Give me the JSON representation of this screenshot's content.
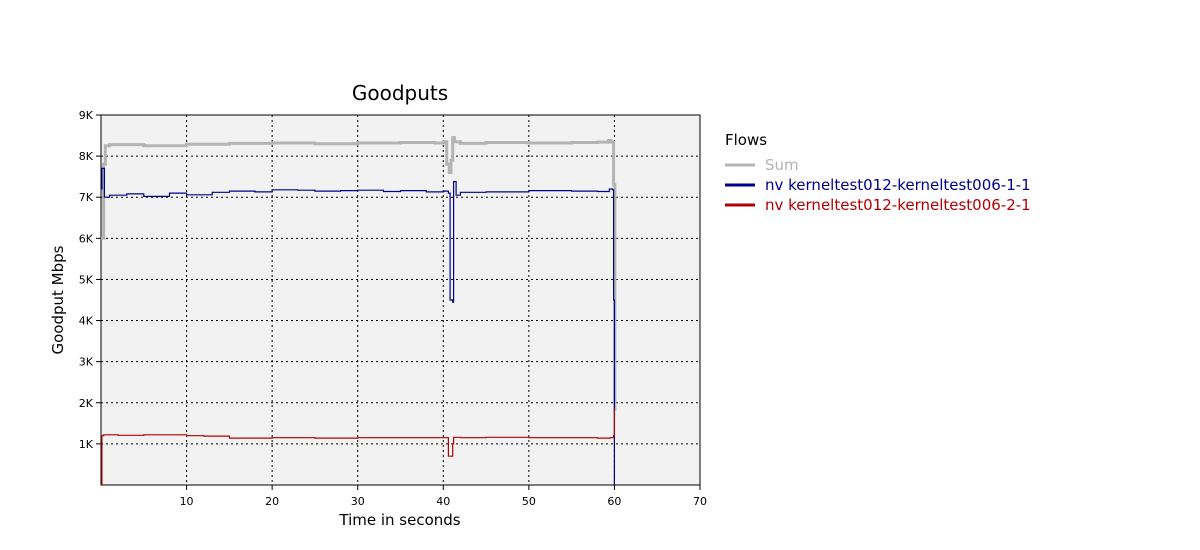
{
  "chart_data": {
    "type": "line",
    "title": "Goodputs",
    "xlabel": "Time in seconds",
    "ylabel": "Goodput Mbps",
    "xlim": [
      0,
      70
    ],
    "ylim": [
      0,
      9000
    ],
    "grid": true,
    "legend_position": "right",
    "x_ticks": [
      10,
      20,
      30,
      40,
      50,
      60,
      70
    ],
    "y_ticks": [
      1000,
      2000,
      3000,
      4000,
      5000,
      6000,
      7000,
      8000,
      9000
    ],
    "x_tick_labels": [
      "10",
      "20",
      "30",
      "40",
      "50",
      "60",
      "70"
    ],
    "y_tick_labels": [
      "1K",
      "2K",
      "3K",
      "4K",
      "5K",
      "6K",
      "7K",
      "8K",
      "9K"
    ],
    "legend_title": "Flows",
    "series": [
      {
        "name": "Sum",
        "color": "#b4b4b4",
        "x": [
          0,
          0.1,
          0.3,
          0.5,
          1,
          2,
          5,
          10,
          15,
          20,
          25,
          30,
          35,
          39,
          40.1,
          40.4,
          40.7,
          40.9,
          41.1,
          41.3,
          42,
          45,
          50,
          55,
          58,
          59.3,
          59.6,
          59.9,
          60.05
        ],
        "y": [
          6000,
          6000,
          7800,
          8250,
          8280,
          8280,
          8250,
          8290,
          8310,
          8320,
          8300,
          8320,
          8330,
          8320,
          8350,
          7800,
          7600,
          7900,
          8450,
          8350,
          8310,
          8330,
          8320,
          8330,
          8340,
          8380,
          8340,
          7300,
          1800
        ]
      },
      {
        "name": "nv kerneltest012-kerneltest006-1-1",
        "color": "#00008c",
        "x": [
          0,
          0.1,
          0.4,
          1,
          3,
          5,
          8,
          10,
          13,
          15,
          18,
          20,
          23,
          25,
          28,
          30,
          33,
          35,
          38,
          40,
          40.6,
          40.8,
          41.1,
          41.2,
          41.5,
          42,
          45,
          50,
          55,
          58,
          59.4,
          59.8,
          59.9,
          60.0
        ],
        "y": [
          7200,
          7700,
          7000,
          7050,
          7080,
          7020,
          7100,
          7060,
          7120,
          7150,
          7130,
          7180,
          7170,
          7150,
          7160,
          7170,
          7140,
          7160,
          7130,
          7150,
          7100,
          4500,
          4450,
          7380,
          7050,
          7120,
          7130,
          7160,
          7150,
          7140,
          7200,
          7180,
          4500,
          0
        ]
      },
      {
        "name": "nv kerneltest012-kerneltest006-2-1",
        "color": "#b40000",
        "x": [
          0,
          0.05,
          0.1,
          0.3,
          2,
          5,
          10,
          12,
          15,
          18,
          20,
          25,
          30,
          35,
          40,
          40.6,
          40.8,
          41.1,
          41.2,
          42,
          45,
          50,
          55,
          58,
          59.5,
          59.9,
          60.0,
          60.05
        ],
        "y": [
          0,
          0,
          1200,
          1220,
          1210,
          1220,
          1200,
          1190,
          1140,
          1140,
          1150,
          1140,
          1150,
          1150,
          1150,
          700,
          700,
          1000,
          1160,
          1150,
          1160,
          1150,
          1150,
          1140,
          1150,
          1200,
          1850,
          1850
        ]
      }
    ]
  }
}
